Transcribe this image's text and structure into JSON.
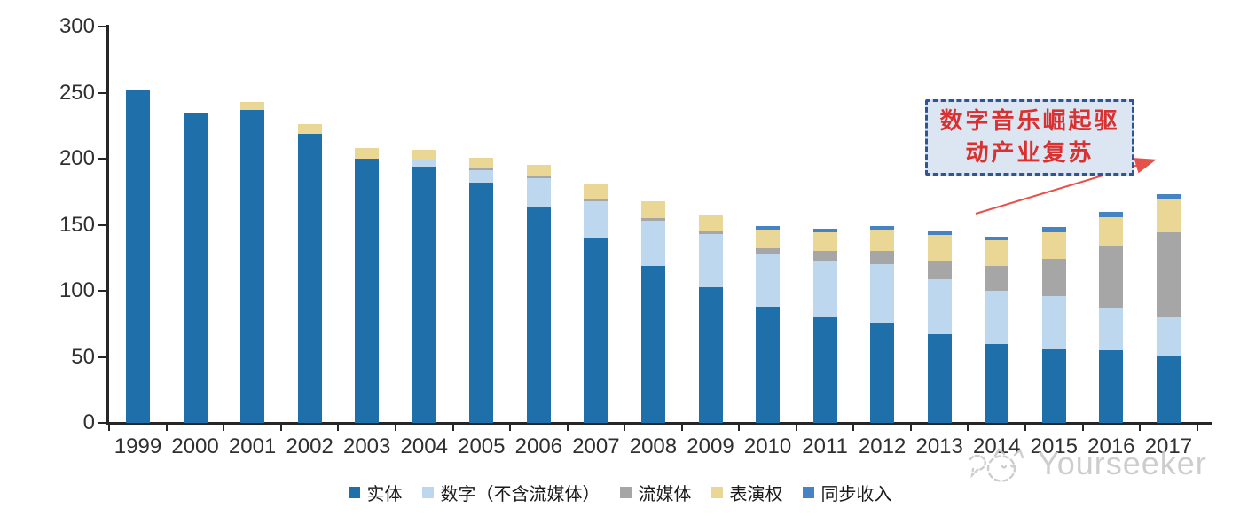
{
  "chart_data": {
    "type": "bar",
    "stacked": true,
    "title": "",
    "xlabel": "",
    "ylabel": "",
    "ylim": [
      0,
      300
    ],
    "y_ticks": [
      0,
      50,
      100,
      150,
      200,
      250,
      300
    ],
    "grid": false,
    "legend_position": "bottom",
    "categories": [
      "1999",
      "2000",
      "2001",
      "2002",
      "2003",
      "2004",
      "2005",
      "2006",
      "2007",
      "2008",
      "2009",
      "2010",
      "2011",
      "2012",
      "2013",
      "2014",
      "2015",
      "2016",
      "2017"
    ],
    "series": [
      {
        "name": "实体",
        "color": "#1F6FAB",
        "values": [
          252,
          234,
          237,
          219,
          200,
          194,
          182,
          163,
          140,
          119,
          103,
          88,
          80,
          76,
          67,
          60,
          56,
          55,
          50
        ]
      },
      {
        "name": "数字（不含流媒体）",
        "color": "#BDD7EE",
        "values": [
          0,
          0,
          0,
          0,
          0,
          5,
          9,
          22,
          28,
          34,
          40,
          40,
          43,
          44,
          42,
          40,
          40,
          32,
          30
        ]
      },
      {
        "name": "流媒体",
        "color": "#A6A6A6",
        "values": [
          0,
          0,
          0,
          0,
          0,
          0,
          2,
          2,
          2,
          2,
          2,
          4,
          7,
          10,
          14,
          19,
          28,
          47,
          64
        ]
      },
      {
        "name": "表演权",
        "color": "#EAD695",
        "values": [
          0,
          0,
          6,
          7,
          8,
          8,
          8,
          8,
          11,
          13,
          13,
          14,
          14,
          16,
          19,
          19,
          20,
          22,
          25
        ]
      },
      {
        "name": "同步收入",
        "color": "#4583C2",
        "values": [
          0,
          0,
          0,
          0,
          0,
          0,
          0,
          0,
          0,
          0,
          0,
          3,
          3,
          3,
          3,
          3,
          4,
          4,
          4
        ]
      }
    ],
    "totals": [
      252,
      234,
      243,
      226,
      208,
      207,
      201,
      195,
      181,
      168,
      158,
      149,
      147,
      149,
      145,
      141,
      148,
      160,
      173
    ]
  },
  "annotation": {
    "line1": "数字音乐崛起驱",
    "line2": "动产业复苏",
    "text_color": "#D93030",
    "border_color": "#2F5597",
    "background_color": "#DBE6F2",
    "arrow_color": "#E8504A"
  },
  "watermark": {
    "text": "Yourseeker",
    "color": "#C8C8C8"
  },
  "colors": {
    "axis": "#262626",
    "tick_label": "#303030",
    "background": "#FFFFFF"
  }
}
